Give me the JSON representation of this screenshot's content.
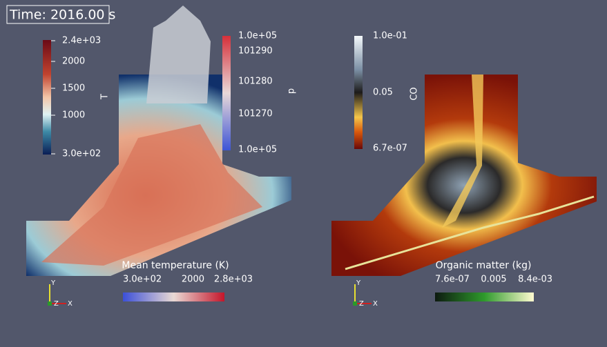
{
  "time_label": "Time: 2016.00 s",
  "left_view": {
    "temperature_bar": {
      "title": "T",
      "labels": [
        "2.4e+03",
        "2000",
        "1500",
        "1000",
        "3.0e+02"
      ]
    },
    "pressure_bar": {
      "title": "p",
      "labels": [
        "1.0e+05",
        "101290",
        "101280",
        "101270",
        "1.0e+05"
      ]
    },
    "mean_temperature_bar": {
      "title": "Mean temperature (K)",
      "labels": [
        "3.0e+02",
        "2000",
        "2.8e+03"
      ]
    },
    "axes": {
      "y": "Y",
      "z": "Z",
      "x": "X"
    }
  },
  "right_view": {
    "co_bar": {
      "title": "CO",
      "labels": [
        "1.0e-01",
        "0.05",
        "6.7e-07"
      ]
    },
    "organic_matter_bar": {
      "title": "Organic matter (kg)",
      "labels": [
        "7.6e-07",
        "0.005",
        "8.4e-03"
      ]
    },
    "axes": {
      "y": "Y",
      "z": "Z",
      "x": "X"
    }
  }
}
